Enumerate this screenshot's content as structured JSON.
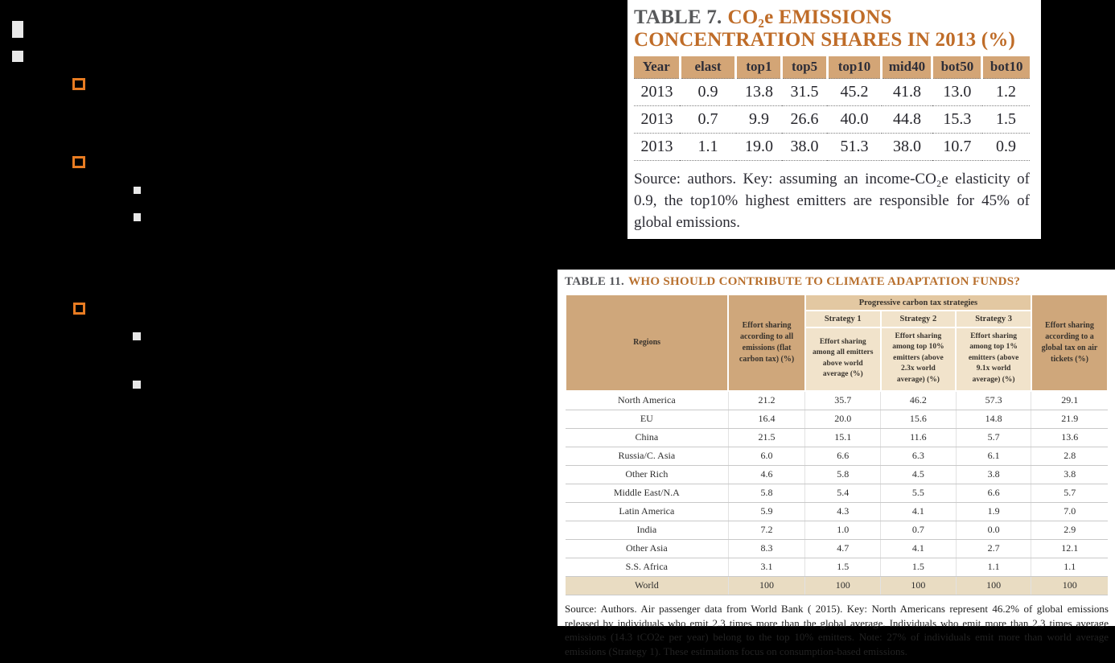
{
  "colors": {
    "page_background": "#000000",
    "panel_background": "#ffffff",
    "title_orange": "#bf6c28",
    "title_gray": "#57585a",
    "header_tan": "#d3a576",
    "header_tan_dark": "#cfa77b",
    "banner_tan": "#e3c8a2",
    "strategy_cream": "#f1e3cb",
    "world_row_tan": "#e9dcc2",
    "orange_square": "#e87c22",
    "gray_square": "#e8e8e8"
  },
  "decor": {
    "orange_squares_count": 3,
    "gray_squares_count": 6
  },
  "table7": {
    "title_prefix": "TABLE 7.",
    "title_main": "CO₂e EMISSIONS CONCENTRATION SHARES IN 2013 (%)",
    "columns": [
      "Year",
      "elast",
      "top1",
      "top5",
      "top10",
      "mid40",
      "bot50",
      "bot10"
    ],
    "rows": [
      [
        "2013",
        "0.9",
        "13.8",
        "31.5",
        "45.2",
        "41.8",
        "13.0",
        "1.2"
      ],
      [
        "2013",
        "0.7",
        "9.9",
        "26.6",
        "40.0",
        "44.8",
        "15.3",
        "1.5"
      ],
      [
        "2013",
        "1.1",
        "19.0",
        "38.0",
        "51.3",
        "38.0",
        "10.7",
        "0.9"
      ]
    ],
    "source": "Source: authors. Key: assuming an income-CO₂e elasticity of 0.9, the top10% highest emitters are responsible for 45% of global emissions."
  },
  "table11": {
    "title_prefix": "TABLE 11.",
    "title_main": "WHO SHOULD CONTRIBUTE TO CLIMATE ADAPTATION FUNDS?",
    "header": {
      "regions": "Regions",
      "flat_tax": "Effort sharing according to all emissions (flat carbon tax) (%)",
      "group": "Progressive carbon tax strategies",
      "strategies": [
        {
          "name": "Strategy 1",
          "desc": "Effort sharing among all emitters above world average (%)"
        },
        {
          "name": "Strategy 2",
          "desc": "Effort sharing among top 10% emitters (above 2.3x world average) (%)"
        },
        {
          "name": "Strategy 3",
          "desc": "Effort sharing among top 1% emitters (above 9.1x world average) (%)"
        }
      ],
      "air_tickets": "Effort sharing according to a global tax on air tickets (%)"
    },
    "rows": [
      {
        "region": "North America",
        "values": [
          "21.2",
          "35.7",
          "46.2",
          "57.3",
          "29.1"
        ],
        "highlight": false
      },
      {
        "region": "EU",
        "values": [
          "16.4",
          "20.0",
          "15.6",
          "14.8",
          "21.9"
        ],
        "highlight": false
      },
      {
        "region": "China",
        "values": [
          "21.5",
          "15.1",
          "11.6",
          "5.7",
          "13.6"
        ],
        "highlight": false
      },
      {
        "region": "Russia/C. Asia",
        "values": [
          "6.0",
          "6.6",
          "6.3",
          "6.1",
          "2.8"
        ],
        "highlight": false
      },
      {
        "region": "Other Rich",
        "values": [
          "4.6",
          "5.8",
          "4.5",
          "3.8",
          "3.8"
        ],
        "highlight": false
      },
      {
        "region": "Middle East/N.A",
        "values": [
          "5.8",
          "5.4",
          "5.5",
          "6.6",
          "5.7"
        ],
        "highlight": false
      },
      {
        "region": "Latin America",
        "values": [
          "5.9",
          "4.3",
          "4.1",
          "1.9",
          "7.0"
        ],
        "highlight": false
      },
      {
        "region": "India",
        "values": [
          "7.2",
          "1.0",
          "0.7",
          "0.0",
          "2.9"
        ],
        "highlight": false
      },
      {
        "region": "Other Asia",
        "values": [
          "8.3",
          "4.7",
          "4.1",
          "2.7",
          "12.1"
        ],
        "highlight": false
      },
      {
        "region": "S.S. Africa",
        "values": [
          "3.1",
          "1.5",
          "1.5",
          "1.1",
          "1.1"
        ],
        "highlight": false
      },
      {
        "region": "World",
        "values": [
          "100",
          "100",
          "100",
          "100",
          "100"
        ],
        "highlight": true
      }
    ],
    "source": "Source: Authors. Air passenger data from World Bank ( 2015). Key: North Americans represent 46.2% of global emissions released by individuals who emit 2.3 times more than the global average. Individuals who emit more than 2.3 times average emissions (14.3 tCO2e per year) belong to the top 10% emitters. Note: 27% of individuals emit more than world average emissions (Strategy 1). These estimations focus on consumption-based emissions."
  }
}
